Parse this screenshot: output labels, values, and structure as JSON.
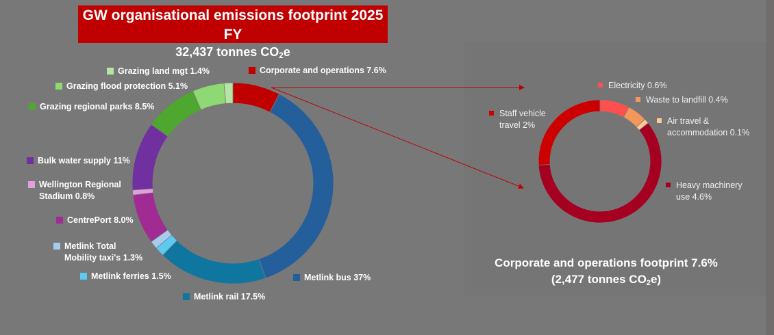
{
  "chart_data": [
    {
      "type": "pie",
      "subtype": "donut",
      "title": "GW organisational emissions footprint 2025 FY",
      "subtitle_prefix": "32,437 tonnes CO",
      "subtitle_sub": "2",
      "subtitle_suffix": "e",
      "unit": "%",
      "start": "12 o'clock, clockwise",
      "slices": [
        {
          "label": "Corporate and operations 7.6%",
          "value": 7.6,
          "color": "#c00000"
        },
        {
          "label": "Metlink bus 37%",
          "value": 37,
          "color": "#245f9c"
        },
        {
          "label": "Metlink rail 17.5%",
          "value": 17.5,
          "color": "#0f76a0"
        },
        {
          "label": "Metlink ferries 1.5%",
          "value": 1.5,
          "color": "#5ccbf1"
        },
        {
          "label": "Metlink Total Mobility taxi's 1.3%",
          "value": 1.3,
          "color": "#a6cbed"
        },
        {
          "label": "CentrePort 8.0%",
          "value": 8.0,
          "color": "#a02b93"
        },
        {
          "label": "Wellington Regional Stadium 0.8%",
          "value": 0.8,
          "color": "#e59edd"
        },
        {
          "label": "Bulk water supply 11%",
          "value": 11,
          "color": "#7030a0"
        },
        {
          "label": "Grazing regional parks 8.5%",
          "value": 8.5,
          "color": "#4ea72e"
        },
        {
          "label": "Grazing flood protection 5.1%",
          "value": 5.1,
          "color": "#8ed973"
        },
        {
          "label": "Grazing land mgt 1.4%",
          "value": 1.4,
          "color": "#b4e5a2"
        }
      ]
    },
    {
      "type": "pie",
      "subtype": "donut",
      "title_line1": "Corporate and operations footprint 7.6%",
      "title_line2_prefix": "(2,477 tonnes CO",
      "title_line2_sub": "2",
      "title_line2_suffix": "e)",
      "unit": "%",
      "start": "12 o'clock, clockwise",
      "slices": [
        {
          "label": "Electricity 0.6%",
          "value": 0.6,
          "color": "#ff5050"
        },
        {
          "label": "Waste to landfill 0.4%",
          "value": 0.4,
          "color": "#f4975a"
        },
        {
          "label": "Air travel & accommodation 0.1%",
          "value": 0.1,
          "color": "#ffc996"
        },
        {
          "label": "Heavy machinery use 4.6%",
          "value": 4.6,
          "color": "#a50021"
        },
        {
          "label": "Staff vehicle travel 2%",
          "value": 2,
          "color": "#cc0000"
        }
      ]
    }
  ],
  "sublabels": {
    "stadium": [
      "Wellington Regional",
      "Stadium 0.8%"
    ],
    "mobility": [
      "Metlink Total",
      "Mobility taxi's 1.3%"
    ],
    "air": [
      "Air travel &",
      "accommodation 0.1%"
    ],
    "heavy": [
      "Heavy machinery",
      "use 4.6%"
    ],
    "staff": [
      "Staff vehicle",
      "travel 2%"
    ]
  },
  "connector_color": "#c00000"
}
